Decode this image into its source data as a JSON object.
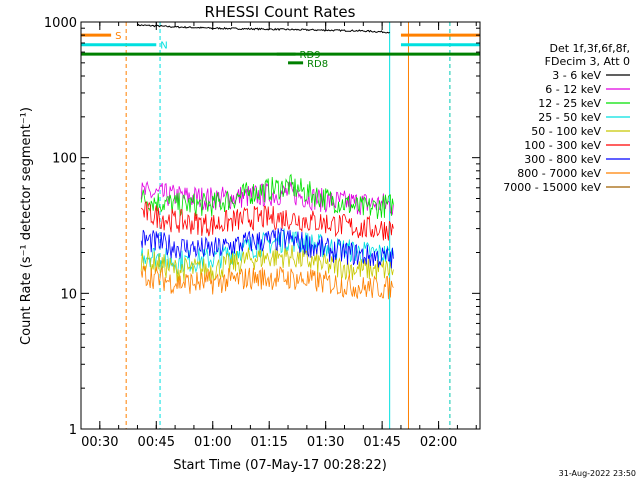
{
  "chart_data": {
    "type": "line",
    "title": "RHESSI Count Rates",
    "xlabel": "Start Time (07-May-17 00:28:22)",
    "ylabel": "Count Rate (s⁻¹ detector segment⁻¹)",
    "y_scale": "log",
    "xlim": [
      "00:25",
      "02:11"
    ],
    "ylim": [
      1,
      1000
    ],
    "x_ticks": [
      "00:30",
      "00:45",
      "01:00",
      "01:15",
      "01:30",
      "01:45",
      "02:00"
    ],
    "y_ticks": [
      "1",
      "10",
      "100",
      "1000"
    ],
    "grid": false,
    "legend_position": "right",
    "legend_header": [
      "Det 1f,3f,6f,8f,",
      "FDecim 3, Att 0"
    ],
    "series": [
      {
        "name": "3 - 6 keV",
        "color": "#000000",
        "x": [
          "00:40",
          "00:50",
          "01:00",
          "01:10",
          "01:20",
          "01:30",
          "01:40",
          "01:47"
        ],
        "values": [
          950,
          920,
          900,
          890,
          880,
          870,
          860,
          840
        ]
      },
      {
        "name": "6 - 12 keV",
        "color": "#e000e0",
        "x": [
          "00:41",
          "00:50",
          "01:00",
          "01:10",
          "01:20",
          "01:30",
          "01:40",
          "01:48"
        ],
        "values": [
          55,
          52,
          50,
          52,
          55,
          48,
          46,
          45
        ]
      },
      {
        "name": "12 - 25 keV",
        "color": "#00e000",
        "x": [
          "00:41",
          "00:50",
          "01:00",
          "01:10",
          "01:20",
          "01:30",
          "01:40",
          "01:48"
        ],
        "values": [
          50,
          45,
          45,
          55,
          62,
          50,
          42,
          45
        ]
      },
      {
        "name": "25 - 50 keV",
        "color": "#00e0e0",
        "x": [
          "00:41",
          "00:50",
          "01:00",
          "01:10",
          "01:20",
          "01:30",
          "01:40",
          "01:48"
        ],
        "values": [
          20,
          17,
          18,
          22,
          25,
          22,
          20,
          19
        ]
      },
      {
        "name": "50 - 100 keV",
        "color": "#c8c800",
        "x": [
          "00:41",
          "00:50",
          "01:00",
          "01:10",
          "01:20",
          "01:30",
          "01:40",
          "01:48"
        ],
        "values": [
          18,
          15,
          15,
          18,
          19,
          16,
          15,
          15
        ]
      },
      {
        "name": "100 - 300 keV",
        "color": "#ff0000",
        "x": [
          "00:41",
          "00:50",
          "01:00",
          "01:10",
          "01:20",
          "01:30",
          "01:40",
          "01:48"
        ],
        "values": [
          40,
          34,
          32,
          36,
          36,
          33,
          30,
          30
        ]
      },
      {
        "name": "300 - 800 keV",
        "color": "#0000ff",
        "x": [
          "00:41",
          "00:50",
          "01:00",
          "01:10",
          "01:20",
          "01:30",
          "01:40",
          "01:48"
        ],
        "values": [
          25,
          22,
          21,
          24,
          25,
          21,
          19,
          18
        ]
      },
      {
        "name": "800 - 7000 keV",
        "color": "#ff8000",
        "x": [
          "00:41",
          "00:50",
          "01:00",
          "01:10",
          "01:20",
          "01:30",
          "01:40",
          "01:48"
        ],
        "values": [
          14,
          12,
          12,
          13,
          13,
          12,
          11,
          11
        ]
      },
      {
        "name": "7000 - 15000 keV",
        "color": "#a06000",
        "x": [],
        "values": []
      }
    ],
    "markers": [
      {
        "label": "S",
        "color": "#ff8000",
        "segments": [
          [
            "00:25",
            "00:33"
          ],
          [
            "01:50",
            "02:11"
          ]
        ],
        "y": 800
      },
      {
        "label": "N",
        "color": "#00e0e0",
        "segments": [
          [
            "00:25",
            "00:45"
          ],
          [
            "01:50",
            "02:11"
          ]
        ],
        "y": 680
      },
      {
        "label": "",
        "color": "#008000",
        "segments": [
          [
            "00:25",
            "02:11"
          ]
        ],
        "y": 580
      },
      {
        "label": "RD9",
        "color": "#008000",
        "segments": [
          [
            "01:17",
            "01:22"
          ]
        ],
        "y": 580
      },
      {
        "label": "RD8",
        "color": "#008000",
        "segments": [
          [
            "01:20",
            "01:24"
          ]
        ],
        "y": 500
      }
    ],
    "vlines": [
      {
        "x": "00:25",
        "color": "#00e0e0",
        "style": "solid"
      },
      {
        "x": "00:37",
        "color": "#ff8000",
        "style": "dashed"
      },
      {
        "x": "00:46",
        "color": "#00e0e0",
        "style": "dashed"
      },
      {
        "x": "01:47",
        "color": "#00e0e0",
        "style": "solid"
      },
      {
        "x": "01:52",
        "color": "#ff8000",
        "style": "solid"
      },
      {
        "x": "02:03",
        "color": "#ff8000",
        "style": "dashed"
      },
      {
        "x": "02:03",
        "color": "#00e0e0",
        "style": "dashed"
      }
    ]
  },
  "footer": {
    "timestamp": "31-Aug-2022 23:50"
  }
}
